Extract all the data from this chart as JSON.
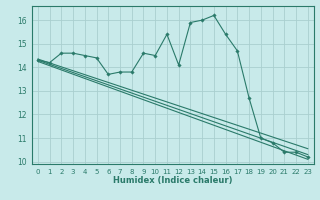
{
  "xlabel": "Humidex (Indice chaleur)",
  "background_color": "#c8eaea",
  "grid_color": "#aacfcf",
  "line_color": "#2a7a6a",
  "xlim": [
    -0.5,
    23.5
  ],
  "ylim": [
    9.9,
    16.6
  ],
  "yticks": [
    10,
    11,
    12,
    13,
    14,
    15,
    16
  ],
  "xticks": [
    0,
    1,
    2,
    3,
    4,
    5,
    6,
    7,
    8,
    9,
    10,
    11,
    12,
    13,
    14,
    15,
    16,
    17,
    18,
    19,
    20,
    21,
    22,
    23
  ],
  "series": [
    [
      0,
      14.3
    ],
    [
      1,
      14.2
    ],
    [
      2,
      14.6
    ],
    [
      3,
      14.6
    ],
    [
      4,
      14.5
    ],
    [
      5,
      14.4
    ],
    [
      6,
      13.7
    ],
    [
      7,
      13.8
    ],
    [
      8,
      13.8
    ],
    [
      9,
      14.6
    ],
    [
      10,
      14.5
    ],
    [
      11,
      15.4
    ],
    [
      12,
      14.1
    ],
    [
      13,
      15.9
    ],
    [
      14,
      16.0
    ],
    [
      15,
      16.2
    ],
    [
      16,
      15.4
    ],
    [
      17,
      14.7
    ],
    [
      18,
      12.7
    ],
    [
      19,
      11.0
    ],
    [
      20,
      10.8
    ],
    [
      21,
      10.4
    ],
    [
      22,
      10.4
    ],
    [
      23,
      10.2
    ]
  ],
  "trend_lines": [
    [
      [
        0,
        14.35
      ],
      [
        23,
        10.55
      ]
    ],
    [
      [
        0,
        14.3
      ],
      [
        23,
        10.3
      ]
    ],
    [
      [
        0,
        14.25
      ],
      [
        23,
        10.1
      ]
    ]
  ],
  "xlabel_fontsize": 6.0,
  "tick_fontsize": 5.0,
  "ytick_fontsize": 5.5
}
